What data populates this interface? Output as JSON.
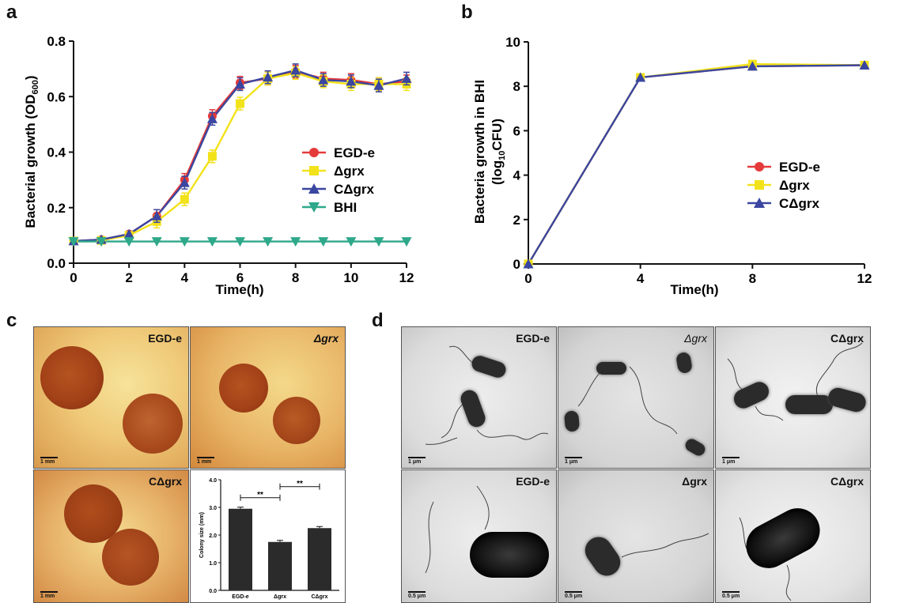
{
  "panel_letters": {
    "a": "a",
    "b": "b",
    "c": "c",
    "d": "d"
  },
  "colors": {
    "egde": "#e53a3a",
    "dgrx": "#f2e21a",
    "cdgrx": "#3a46a0",
    "bhi": "#2ea88a",
    "bar": "#2b2b2b"
  },
  "chart_data": [
    {
      "type": "line",
      "panel": "a",
      "xlabel": "Time(h)",
      "ylabel": "Bacterial growth (OD",
      "ylabel_sub": "600",
      "ylabel_end": ")",
      "xlim": [
        0,
        12
      ],
      "ylim": [
        0,
        0.8
      ],
      "x_ticks": [
        "0",
        "2",
        "4",
        "6",
        "8",
        "10",
        "12"
      ],
      "y_ticks": [
        "0.0",
        "0.2",
        "0.4",
        "0.6",
        "0.8"
      ],
      "x": [
        0,
        1,
        2,
        3,
        4,
        5,
        6,
        7,
        8,
        9,
        10,
        11,
        12
      ],
      "legend": "right-middle",
      "series": [
        {
          "name": "EGD-e",
          "marker": "circle",
          "values": [
            0.08,
            0.085,
            0.105,
            0.17,
            0.3,
            0.53,
            0.65,
            0.665,
            0.69,
            0.665,
            0.66,
            0.645,
            0.655
          ]
        },
        {
          "name": "Δgrx",
          "marker": "square",
          "values": [
            0.08,
            0.082,
            0.1,
            0.15,
            0.23,
            0.385,
            0.575,
            0.665,
            0.685,
            0.655,
            0.645,
            0.645,
            0.645
          ]
        },
        {
          "name": "CΔgrx",
          "marker": "triangle-up",
          "values": [
            0.08,
            0.085,
            0.105,
            0.17,
            0.29,
            0.52,
            0.645,
            0.67,
            0.695,
            0.66,
            0.655,
            0.64,
            0.665
          ]
        },
        {
          "name": "BHI",
          "marker": "triangle-down",
          "values": [
            0.078,
            0.078,
            0.078,
            0.078,
            0.078,
            0.078,
            0.078,
            0.078,
            0.078,
            0.078,
            0.078,
            0.078,
            0.078
          ]
        }
      ]
    },
    {
      "type": "line",
      "panel": "b",
      "xlabel": "Time(h)",
      "ylabel": "Bacteria growth in BHI",
      "ylabel2": "(log",
      "ylabel2_sub": "10",
      "ylabel2_end": "CFU)",
      "xlim": [
        0,
        12
      ],
      "ylim": [
        0,
        10
      ],
      "x_ticks": [
        "0",
        "4",
        "8",
        "12"
      ],
      "y_ticks": [
        "0",
        "2",
        "4",
        "6",
        "8",
        "10"
      ],
      "x": [
        0,
        4,
        8,
        12
      ],
      "legend": "right-middle",
      "series": [
        {
          "name": "EGD-e",
          "marker": "circle",
          "values": [
            0,
            8.4,
            8.9,
            8.95
          ]
        },
        {
          "name": "Δgrx",
          "marker": "square",
          "values": [
            0,
            8.4,
            9.0,
            8.95
          ]
        },
        {
          "name": "CΔgrx",
          "marker": "triangle-up",
          "values": [
            0,
            8.4,
            8.9,
            8.95
          ]
        }
      ]
    },
    {
      "type": "bar",
      "panel": "c-inset",
      "ylabel": "Colony size (mm)",
      "categories": [
        "EGD-e",
        "Δgrx",
        "CΔgrx"
      ],
      "values": [
        2.95,
        1.75,
        2.25
      ],
      "ylim": [
        0,
        4.0
      ],
      "y_ticks": [
        "0.0",
        "1.0",
        "2.0",
        "3.0",
        "4.0"
      ],
      "significance": [
        "**",
        "**"
      ]
    }
  ],
  "panel_c": {
    "photos": [
      {
        "label": "EGD-e",
        "scale": "1 mm"
      },
      {
        "label": "Δgrx",
        "scale": "1 mm"
      },
      {
        "label": "CΔgrx",
        "scale": "1 mm"
      }
    ]
  },
  "panel_d": {
    "photos": [
      {
        "label": "EGD-e",
        "scale": "1 μm"
      },
      {
        "label": "Δgrx",
        "scale": "1 μm"
      },
      {
        "label": "CΔgrx",
        "scale": "1 μm"
      },
      {
        "label": "EGD-e",
        "scale": "0.5 μm"
      },
      {
        "label": "Δgrx",
        "scale": "0.5 μm"
      },
      {
        "label": "CΔgrx",
        "scale": "0.5 μm"
      }
    ]
  }
}
